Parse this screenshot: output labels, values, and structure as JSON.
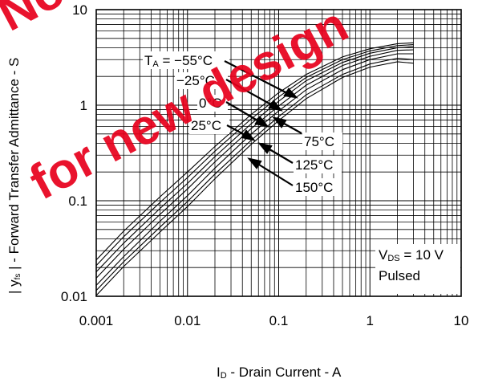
{
  "chart_data": {
    "type": "line",
    "x_scale": "log",
    "y_scale": "log",
    "xlim": [
      0.001,
      10
    ],
    "ylim": [
      0.01,
      10
    ],
    "x_tick_labels": [
      "0.001",
      "0.01",
      "0.1",
      "1",
      "10"
    ],
    "y_tick_labels": [
      "0.01",
      "0.1",
      "1",
      "10"
    ],
    "xlabel": {
      "main": "I",
      "sub": "D",
      "rest": " - Drain Current - A"
    },
    "ylabel": {
      "pre": "| y",
      "sub": "fs",
      "post": " | - Forward Transfer Admittance - S"
    },
    "grid": true,
    "series": [
      {
        "name": "T_A = −55°C",
        "x": [
          0.001,
          0.002,
          0.005,
          0.01,
          0.02,
          0.05,
          0.1,
          0.2,
          0.5,
          1,
          2,
          3
        ],
        "y": [
          0.024,
          0.048,
          0.11,
          0.2,
          0.37,
          0.8,
          1.35,
          2.1,
          3.2,
          3.9,
          4.4,
          4.5
        ]
      },
      {
        "name": "−25°C",
        "x": [
          0.001,
          0.002,
          0.005,
          0.01,
          0.02,
          0.05,
          0.1,
          0.2,
          0.5,
          1,
          2,
          3
        ],
        "y": [
          0.021,
          0.042,
          0.096,
          0.175,
          0.33,
          0.72,
          1.22,
          1.95,
          3.0,
          3.7,
          4.2,
          4.3
        ]
      },
      {
        "name": "0°C",
        "x": [
          0.001,
          0.002,
          0.005,
          0.01,
          0.02,
          0.05,
          0.1,
          0.2,
          0.5,
          1,
          2,
          3
        ],
        "y": [
          0.018,
          0.036,
          0.083,
          0.152,
          0.29,
          0.64,
          1.1,
          1.8,
          2.8,
          3.5,
          4.0,
          4.1
        ]
      },
      {
        "name": "25°C",
        "x": [
          0.001,
          0.002,
          0.005,
          0.01,
          0.02,
          0.05,
          0.1,
          0.2,
          0.5,
          1,
          2,
          3
        ],
        "y": [
          0.0155,
          0.031,
          0.072,
          0.133,
          0.255,
          0.57,
          0.98,
          1.62,
          2.6,
          3.25,
          3.75,
          3.8
        ]
      },
      {
        "name": "75°C",
        "x": [
          0.001,
          0.002,
          0.005,
          0.01,
          0.02,
          0.05,
          0.1,
          0.2,
          0.5,
          1,
          2,
          3
        ],
        "y": [
          0.013,
          0.026,
          0.061,
          0.113,
          0.22,
          0.5,
          0.87,
          1.45,
          2.35,
          3.0,
          3.45,
          3.45
        ]
      },
      {
        "name": "125°C",
        "x": [
          0.001,
          0.002,
          0.005,
          0.01,
          0.02,
          0.05,
          0.1,
          0.2,
          0.5,
          1,
          2,
          3
        ],
        "y": [
          0.0115,
          0.023,
          0.053,
          0.098,
          0.19,
          0.43,
          0.76,
          1.28,
          2.1,
          2.7,
          3.1,
          3.0
        ]
      },
      {
        "name": "150°C",
        "x": [
          0.001,
          0.002,
          0.005,
          0.01,
          0.02,
          0.05,
          0.1,
          0.2,
          0.5,
          1,
          2,
          3
        ],
        "y": [
          0.0102,
          0.0205,
          0.047,
          0.087,
          0.17,
          0.39,
          0.69,
          1.17,
          1.95,
          2.5,
          2.85,
          2.75
        ]
      }
    ],
    "temperature_labels": [
      {
        "text": "T",
        "sub": "A",
        "rest": " = −55°C"
      },
      {
        "text": "−25°C"
      },
      {
        "text": "0°C"
      },
      {
        "text": "25°C"
      },
      {
        "text": "75°C"
      },
      {
        "text": "125°C"
      },
      {
        "text": "150°C"
      }
    ],
    "conditions": {
      "line1": {
        "text": "V",
        "sub": "DS",
        "rest": " = 10 V"
      },
      "line2": "Pulsed"
    }
  },
  "watermark": {
    "lines": [
      "Not recommended",
      "for new design"
    ],
    "color": "#e8001c"
  }
}
